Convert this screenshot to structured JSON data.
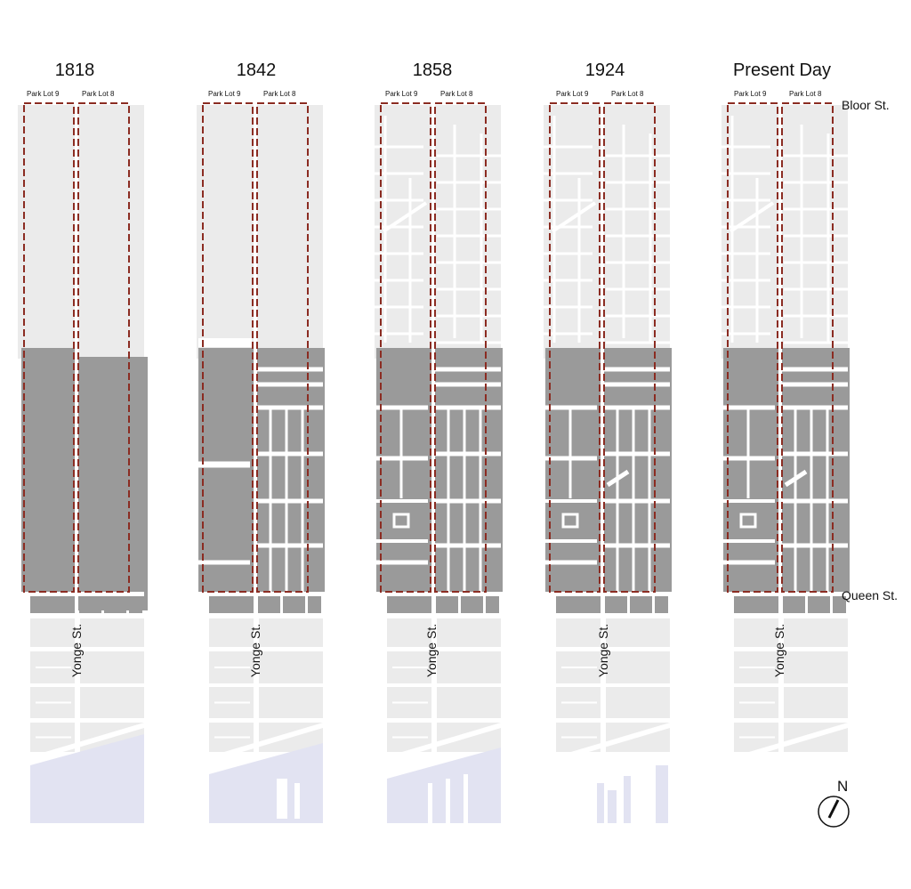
{
  "panels": [
    {
      "year": "1818",
      "lot_left": "Park Lot 9",
      "lot_right": "Park Lot 8",
      "street": "Yonge St."
    },
    {
      "year": "1842",
      "lot_left": "Park Lot 9",
      "lot_right": "Park Lot 8",
      "street": "Yonge St."
    },
    {
      "year": "1858",
      "lot_left": "Park Lot 9",
      "lot_right": "Park Lot 8",
      "street": "Yonge St."
    },
    {
      "year": "1924",
      "lot_left": "Park Lot 9",
      "lot_right": "Park Lot 8",
      "street": "Yonge St."
    },
    {
      "year": "Present Day",
      "lot_left": "Park Lot 9",
      "lot_right": "Park Lot 8",
      "street": "Yonge St."
    }
  ],
  "streets": {
    "north": "Bloor St.",
    "south": "Queen St."
  },
  "compass": {
    "label": "N"
  },
  "colors": {
    "undeveloped": "#ebebeb",
    "developed": "#9a9a9a",
    "water": "#e2e3f2",
    "lot_outline": "#8b2c22"
  }
}
